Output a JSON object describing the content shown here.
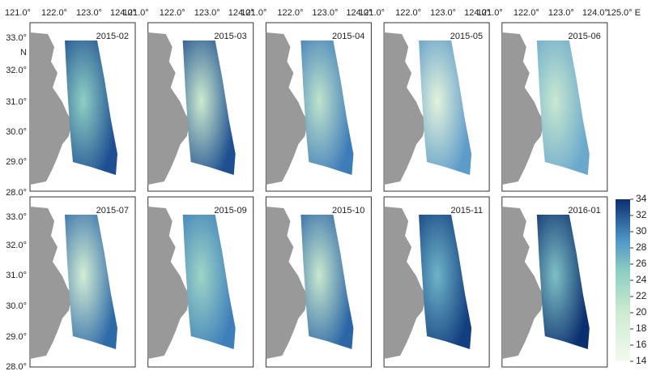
{
  "longitude_labels": [
    [
      "121.0°",
      "122.0°",
      "123.0°",
      "124.0°"
    ],
    [
      "121.0°",
      "122.0°",
      "123.0°",
      "124.0°"
    ],
    [
      "121.0°",
      "122.0°",
      "123.0°",
      "124.0°"
    ],
    [
      "121.0°",
      "122.0°",
      "123.0°",
      "124.0°"
    ],
    [
      "121.0°",
      "122.0°",
      "123.0°",
      "124.0°",
      "125.0° E"
    ]
  ],
  "latitude_labels": [
    [
      "33.0°",
      "N",
      "32.0°",
      "31.0°",
      "30.0°",
      "29.0°",
      "28.0°"
    ],
    [
      "33.0°",
      "32.0°",
      "31.0°",
      "30.0°",
      "29.0°",
      "28.0°"
    ]
  ],
  "panels": [
    "2015-02",
    "2015-03",
    "2015-04",
    "2015-05",
    "2015-06",
    "2015-07",
    "2015-09",
    "2015-10",
    "2015-11",
    "2016-01"
  ],
  "colorbar": {
    "range": [
      14,
      34
    ],
    "ticks": [
      34,
      32,
      30,
      28,
      26,
      24,
      22,
      20,
      18,
      16,
      14
    ]
  }
}
